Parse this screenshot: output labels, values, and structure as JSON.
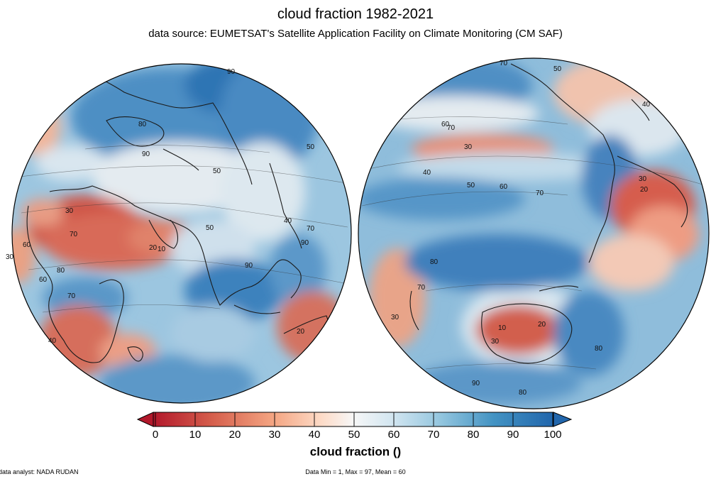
{
  "title": "cloud fraction 1982-2021",
  "subtitle": "data source: EUMETSAT's Satellite Application Facility on Climate Monitoring (CM SAF)",
  "colorbar": {
    "label": "cloud fraction ()",
    "ticks": [
      "0",
      "10",
      "20",
      "30",
      "40",
      "50",
      "60",
      "70",
      "80",
      "90",
      "100"
    ],
    "min": 0,
    "max": 100,
    "colors": [
      "#b2182b",
      "#d6604d",
      "#f4a582",
      "#fddbc7",
      "#f7f7f7",
      "#d1e5f0",
      "#92c5de",
      "#4393c3",
      "#2166ac"
    ]
  },
  "footer": {
    "analyst": "data analyst: NADA RUDAN",
    "stats": "Data Min = 1, Max = 97, Mean = 60"
  },
  "contour_labels": {
    "left": [
      "90",
      "80",
      "50",
      "60",
      "40",
      "70",
      "20",
      "30",
      "10",
      "90",
      "50",
      "70",
      "90",
      "30",
      "40",
      "50",
      "90",
      "80",
      "70",
      "60",
      "20"
    ],
    "right": [
      "70",
      "50",
      "40",
      "30",
      "70",
      "60",
      "50",
      "70",
      "60",
      "30",
      "20",
      "80",
      "70",
      "10",
      "20",
      "30",
      "80",
      "90",
      "80",
      "30",
      "40"
    ]
  },
  "colors": {
    "coast": "#1a1a1a",
    "red": "#c8413c",
    "blue": "#2b6fb0"
  }
}
